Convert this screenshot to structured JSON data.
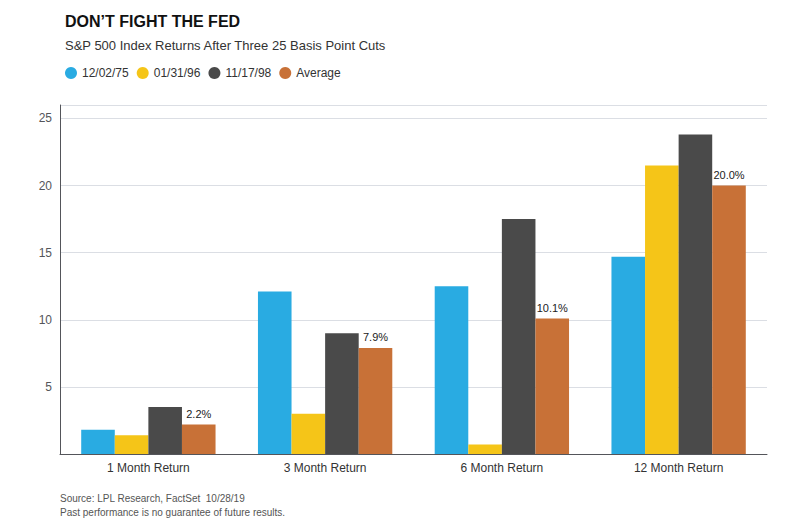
{
  "chart_data": {
    "type": "bar",
    "title": "DON’T FIGHT THE FED",
    "subtitle": "S&P 500 Index Returns After Three 25 Basis Point Cuts",
    "categories": [
      "1 Month Return",
      "3 Month Return",
      "6 Month Return",
      "12 Month Return"
    ],
    "series": [
      {
        "name": "12/02/75",
        "color": "#29abe2",
        "values": [
          1.8,
          12.1,
          12.5,
          14.7
        ]
      },
      {
        "name": "01/31/96",
        "color": "#f5c518",
        "values": [
          1.4,
          3.0,
          0.7,
          21.5
        ]
      },
      {
        "name": "11/17/98",
        "color": "#4a4a4a",
        "values": [
          3.5,
          9.0,
          17.5,
          23.8
        ]
      },
      {
        "name": "Average",
        "color": "#c87137",
        "values": [
          2.2,
          7.9,
          10.1,
          20.0
        ],
        "value_labels": [
          "2.2%",
          "7.9%",
          "10.1%",
          "20.0%"
        ]
      }
    ],
    "ylim": [
      0,
      26
    ],
    "yticks": [
      5,
      10,
      15,
      20,
      25
    ],
    "grid": true,
    "legend": "upper left",
    "source": "Source: LPL Research, FactSet  10/28/19\nPast performance is no guarantee of future results."
  }
}
